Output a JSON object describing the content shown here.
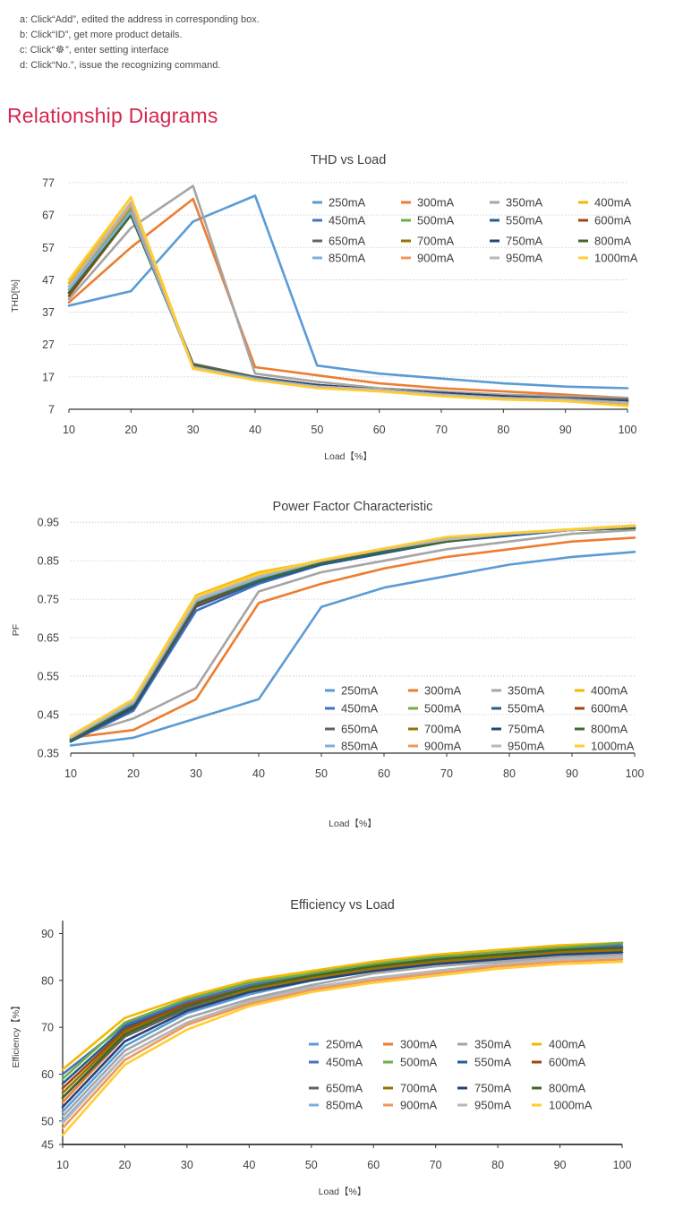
{
  "instructions": [
    "a: Click“Add”, edited the address in corresponding box.",
    "b: Click“ID”, get more product details.",
    "c: Click“",
    "”, enter setting interface",
    "d: Click“No.”,  issue the recognizing command."
  ],
  "section_title": "Relationship Diagrams",
  "legend_colors": {
    "250mA": "#5b9bd5",
    "300mA": "#ed7d31",
    "350mA": "#a5a5a5",
    "400mA": "#f5b800",
    "450mA": "#4472c4",
    "500mA": "#70ad47",
    "550mA": "#255e91",
    "600mA": "#9e480e",
    "650mA": "#636363",
    "700mA": "#997300",
    "750mA": "#264478",
    "800mA": "#43682b",
    "850mA": "#7cafdd",
    "900mA": "#f1975a",
    "950mA": "#b7b7b7",
    "1000mA": "#ffcd33"
  },
  "chart_data": [
    {
      "type": "line",
      "title": "THD vs Load",
      "xlabel": "Load【%】",
      "ylabel": "THD[%]",
      "x": [
        10,
        20,
        30,
        40,
        50,
        60,
        70,
        80,
        90,
        100
      ],
      "xticks": [
        10,
        20,
        30,
        40,
        50,
        60,
        70,
        80,
        90,
        100
      ],
      "yticks": [
        7,
        17,
        27,
        37,
        47,
        57,
        67,
        77
      ],
      "xlim": [
        10,
        100
      ],
      "ylim": [
        7,
        77
      ],
      "grid": "horizontal dotted",
      "legend_position": "top-right",
      "series": [
        {
          "name": "250mA",
          "values": [
            39,
            43.5,
            65,
            73,
            20.5,
            18,
            16.5,
            15,
            14,
            13.5
          ]
        },
        {
          "name": "300mA",
          "values": [
            40,
            57,
            72,
            20,
            17.5,
            15,
            13.5,
            12.5,
            11.5,
            10.5
          ]
        },
        {
          "name": "350mA",
          "values": [
            41,
            63,
            76,
            18,
            15.5,
            13.5,
            12.5,
            11.5,
            11,
            10.5
          ]
        },
        {
          "name": "400mA",
          "values": [
            46,
            72.5,
            20,
            16,
            14,
            13,
            11.5,
            10.5,
            9.5,
            8.5
          ]
        },
        {
          "name": "450mA",
          "values": [
            43,
            67,
            20.5,
            16.5,
            14,
            13,
            11.5,
            10.5,
            10,
            9
          ]
        },
        {
          "name": "500mA",
          "values": [
            44,
            69,
            20,
            16.5,
            14,
            13,
            11.5,
            10.5,
            10,
            9
          ]
        },
        {
          "name": "550mA",
          "values": [
            43,
            67,
            20.5,
            16.5,
            14.5,
            13,
            12,
            11,
            10,
            9.5
          ]
        },
        {
          "name": "600mA",
          "values": [
            42,
            67,
            21,
            17,
            14.5,
            13,
            12,
            11,
            10,
            9.5
          ]
        },
        {
          "name": "650mA",
          "values": [
            43,
            68,
            21,
            17,
            14.5,
            13,
            12,
            11,
            10.5,
            10
          ]
        },
        {
          "name": "700mA",
          "values": [
            44,
            68,
            20.5,
            16.5,
            14,
            13,
            11.5,
            10.5,
            10,
            9
          ]
        },
        {
          "name": "750mA",
          "values": [
            43,
            67,
            20.5,
            16.5,
            14.5,
            13,
            12,
            11,
            10,
            9.5
          ]
        },
        {
          "name": "800mA",
          "values": [
            43,
            67,
            20.5,
            16.5,
            14,
            13,
            11.5,
            10.5,
            10,
            9
          ]
        },
        {
          "name": "850mA",
          "values": [
            44,
            68,
            20,
            16.5,
            14,
            13,
            11.5,
            10.5,
            10,
            9
          ]
        },
        {
          "name": "900mA",
          "values": [
            45,
            70,
            20,
            16,
            14,
            13,
            11.5,
            10.5,
            10,
            9
          ]
        },
        {
          "name": "950mA",
          "values": [
            45,
            71,
            20,
            16,
            14,
            13,
            11.5,
            10.5,
            10,
            9
          ]
        },
        {
          "name": "1000mA",
          "values": [
            47,
            72.5,
            19.5,
            16,
            13.5,
            12.5,
            11,
            10,
            9.5,
            8
          ]
        }
      ]
    },
    {
      "type": "line",
      "title": "Power Factor Characteristic",
      "xlabel": "Load【%】",
      "ylabel": "PF",
      "x": [
        10,
        20,
        30,
        40,
        50,
        60,
        70,
        80,
        90,
        100
      ],
      "xticks": [
        10,
        20,
        30,
        40,
        50,
        60,
        70,
        80,
        90,
        100
      ],
      "yticks": [
        0.35,
        0.45,
        0.55,
        0.65,
        0.75,
        0.85,
        0.95
      ],
      "ytick_labels": [
        "0.35",
        "0.45",
        "0.55",
        "0.65",
        "0.75",
        "0.85",
        "0.95"
      ],
      "xlim": [
        10,
        100
      ],
      "ylim": [
        0.35,
        0.99
      ],
      "grid": "horizontal dotted",
      "legend_position": "bottom-right",
      "series": [
        {
          "name": "250mA",
          "values": [
            0.37,
            0.39,
            0.44,
            0.49,
            0.73,
            0.78,
            0.81,
            0.84,
            0.86,
            0.873
          ]
        },
        {
          "name": "300mA",
          "values": [
            0.39,
            0.41,
            0.49,
            0.74,
            0.79,
            0.83,
            0.86,
            0.88,
            0.9,
            0.91
          ]
        },
        {
          "name": "350mA",
          "values": [
            0.39,
            0.44,
            0.52,
            0.77,
            0.82,
            0.85,
            0.88,
            0.9,
            0.92,
            0.93
          ]
        },
        {
          "name": "400mA",
          "values": [
            0.395,
            0.49,
            0.76,
            0.82,
            0.85,
            0.88,
            0.91,
            0.92,
            0.93,
            0.94
          ]
        },
        {
          "name": "450mA",
          "values": [
            0.38,
            0.46,
            0.72,
            0.79,
            0.84,
            0.87,
            0.9,
            0.92,
            0.93,
            0.935
          ]
        },
        {
          "name": "500mA",
          "values": [
            0.385,
            0.47,
            0.74,
            0.8,
            0.845,
            0.875,
            0.9,
            0.92,
            0.93,
            0.935
          ]
        },
        {
          "name": "550mA",
          "values": [
            0.38,
            0.465,
            0.73,
            0.795,
            0.84,
            0.87,
            0.9,
            0.915,
            0.93,
            0.935
          ]
        },
        {
          "name": "600mA",
          "values": [
            0.385,
            0.47,
            0.735,
            0.8,
            0.845,
            0.875,
            0.9,
            0.92,
            0.93,
            0.935
          ]
        },
        {
          "name": "650mA",
          "values": [
            0.385,
            0.475,
            0.74,
            0.8,
            0.845,
            0.875,
            0.9,
            0.92,
            0.93,
            0.935
          ]
        },
        {
          "name": "700mA",
          "values": [
            0.39,
            0.48,
            0.745,
            0.805,
            0.85,
            0.88,
            0.905,
            0.92,
            0.93,
            0.94
          ]
        },
        {
          "name": "750mA",
          "values": [
            0.385,
            0.47,
            0.74,
            0.8,
            0.845,
            0.875,
            0.9,
            0.92,
            0.93,
            0.935
          ]
        },
        {
          "name": "800mA",
          "values": [
            0.385,
            0.475,
            0.74,
            0.8,
            0.845,
            0.875,
            0.9,
            0.92,
            0.93,
            0.935
          ]
        },
        {
          "name": "850mA",
          "values": [
            0.39,
            0.48,
            0.745,
            0.805,
            0.85,
            0.88,
            0.905,
            0.92,
            0.93,
            0.94
          ]
        },
        {
          "name": "900mA",
          "values": [
            0.39,
            0.485,
            0.75,
            0.81,
            0.85,
            0.88,
            0.905,
            0.92,
            0.93,
            0.94
          ]
        },
        {
          "name": "950mA",
          "values": [
            0.39,
            0.485,
            0.75,
            0.81,
            0.85,
            0.88,
            0.905,
            0.92,
            0.93,
            0.94
          ]
        },
        {
          "name": "1000mA",
          "values": [
            0.395,
            0.49,
            0.757,
            0.815,
            0.852,
            0.882,
            0.912,
            0.922,
            0.932,
            0.942
          ]
        }
      ]
    },
    {
      "type": "line",
      "title": "Efficiency vs Load",
      "xlabel": "Load【%】",
      "ylabel": "Efficiency【%】",
      "x": [
        10,
        20,
        30,
        40,
        50,
        60,
        70,
        80,
        90,
        100
      ],
      "xticks": [
        10,
        20,
        30,
        40,
        50,
        60,
        70,
        80,
        90,
        100
      ],
      "yticks": [
        45,
        50,
        60,
        70,
        80,
        90
      ],
      "xlim": [
        10,
        100
      ],
      "ylim": [
        45,
        92
      ],
      "grid": "none",
      "legend_position": "center-right",
      "series": [
        {
          "name": "250mA",
          "values": [
            52,
            66,
            73,
            77,
            80,
            82,
            83.5,
            84.5,
            85.5,
            86
          ]
        },
        {
          "name": "300mA",
          "values": [
            54,
            68,
            74,
            78,
            80.5,
            82.5,
            84,
            85,
            86,
            86.5
          ]
        },
        {
          "name": "350mA",
          "values": [
            51,
            65,
            72,
            76,
            79,
            81.5,
            83,
            84,
            85,
            85.5
          ]
        },
        {
          "name": "400mA",
          "values": [
            61,
            72,
            76.5,
            80,
            82,
            84,
            85.5,
            86.5,
            87.5,
            88
          ]
        },
        {
          "name": "450mA",
          "values": [
            60,
            70.5,
            75.5,
            79,
            81.5,
            83.5,
            85,
            86,
            87,
            87.5
          ]
        },
        {
          "name": "500mA",
          "values": [
            59,
            71,
            76,
            79.5,
            81.5,
            83.5,
            85,
            86,
            87,
            88
          ]
        },
        {
          "name": "550mA",
          "values": [
            58,
            70,
            75,
            78.5,
            81,
            83,
            84.5,
            85.5,
            86.5,
            87
          ]
        },
        {
          "name": "600mA",
          "values": [
            57,
            69.5,
            75,
            78.5,
            81,
            83,
            84.5,
            85.5,
            86.5,
            87
          ]
        },
        {
          "name": "650mA",
          "values": [
            55,
            68,
            74,
            78,
            80.5,
            82.5,
            84,
            85,
            86,
            86.5
          ]
        },
        {
          "name": "700mA",
          "values": [
            56,
            69,
            74.5,
            78,
            80.5,
            82.5,
            84,
            85,
            86,
            86.5
          ]
        },
        {
          "name": "750mA",
          "values": [
            53,
            67,
            73.5,
            77.5,
            80,
            82,
            83.5,
            84.5,
            85.5,
            86
          ]
        },
        {
          "name": "800mA",
          "values": [
            55,
            68.5,
            74.5,
            78.5,
            81,
            83,
            84.5,
            85.5,
            86.5,
            87
          ]
        },
        {
          "name": "850mA",
          "values": [
            50,
            64,
            71,
            75.5,
            78.5,
            80.5,
            82,
            83.5,
            84.5,
            85
          ]
        },
        {
          "name": "900mA",
          "values": [
            48.5,
            63,
            70.5,
            75,
            78,
            80,
            81.5,
            83,
            84,
            84.5
          ]
        },
        {
          "name": "950mA",
          "values": [
            49.5,
            64,
            71,
            75.5,
            78.5,
            80.5,
            82,
            83.5,
            84.5,
            85
          ]
        },
        {
          "name": "1000mA",
          "values": [
            47,
            62,
            69.5,
            74.5,
            77.5,
            79.5,
            81,
            82.5,
            83.5,
            84
          ]
        }
      ]
    }
  ]
}
